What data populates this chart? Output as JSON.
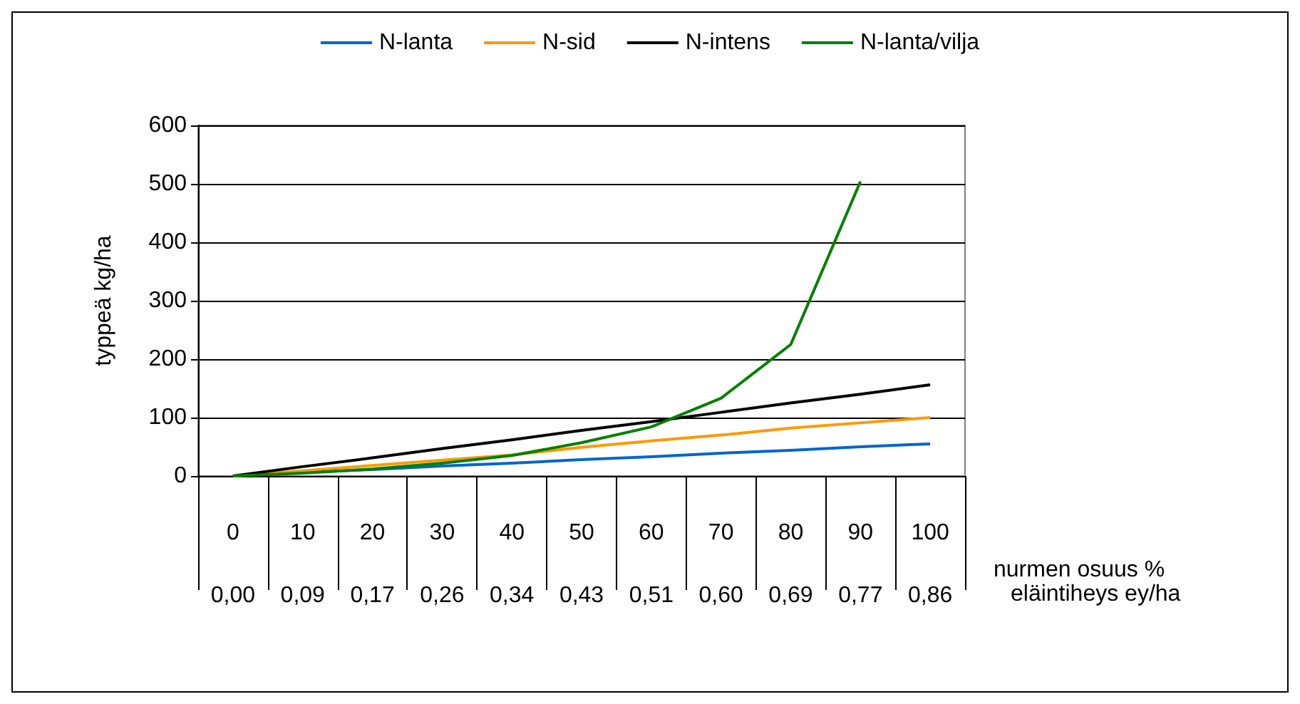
{
  "chart_data": {
    "type": "line",
    "ylabel": "typpeä kg/ha",
    "xlabel": "nurmen osuus %",
    "annotations": [
      "eläintiheys ey/ha"
    ],
    "categories": [
      "0\n0,00",
      "10\n0,09",
      "20\n0,17",
      "30\n0,26",
      "40\n0,34",
      "50\n0,43",
      "60\n0,51",
      "70\n0,60",
      "80\n0,69",
      "90\n0,77",
      "100\n0,86"
    ],
    "series": [
      {
        "name": "N-lanta",
        "color": "#0066cc",
        "values": [
          0,
          6,
          11,
          17,
          22,
          28,
          33,
          39,
          44,
          50,
          55
        ]
      },
      {
        "name": "N-sid",
        "color": "#ff9900",
        "values": [
          0,
          9,
          18,
          27,
          36,
          49,
          60,
          70,
          82,
          91,
          100
        ]
      },
      {
        "name": "N-intens",
        "color": "#000000",
        "values": [
          0,
          16,
          31,
          47,
          62,
          78,
          93,
          109,
          125,
          140,
          156
        ]
      },
      {
        "name": "N-lanta/vilja",
        "color": "#008000",
        "values": [
          0,
          5,
          12,
          22,
          35,
          57,
          84,
          133,
          225,
          504,
          null
        ]
      }
    ],
    "ylim": [
      0,
      600
    ],
    "yticks": [
      0,
      100,
      200,
      300,
      400,
      500,
      600
    ],
    "grid": "y",
    "legend": "top",
    "marker": "none",
    "line_style": "solid"
  }
}
